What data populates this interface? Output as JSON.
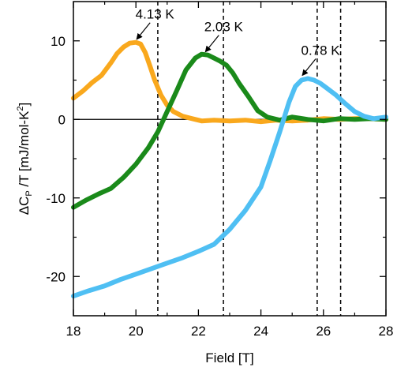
{
  "chart_data": {
    "type": "line",
    "title": "",
    "xlabel": "Field [T]",
    "ylabel": {
      "prefix": "ΔC",
      "sub": "P",
      "middle": " /T  [mJ/mol-K",
      "sup": "2",
      "suffix": "]"
    },
    "xlim": [
      18,
      28
    ],
    "ylim": [
      -25,
      15
    ],
    "x_ticks": [
      18,
      20,
      22,
      24,
      26,
      28
    ],
    "y_ticks": [
      -20,
      -10,
      0,
      10
    ],
    "x_minor_ticks": [
      19,
      21,
      23,
      25,
      27
    ],
    "y_minor_ticks": [
      -15,
      -5,
      5
    ],
    "zero_line": true,
    "grid": false,
    "legend": "none",
    "series": [
      {
        "color": "#F9A81D",
        "x": [
          18.0,
          18.3,
          18.6,
          18.9,
          19.2,
          19.4,
          19.6,
          19.8,
          20.0,
          20.15,
          20.3,
          20.45,
          20.6,
          20.8,
          21.0,
          21.2,
          21.5,
          21.8,
          22.1,
          22.5,
          23.0,
          23.5,
          24.0,
          24.5,
          25.0,
          25.5,
          26.0,
          26.5,
          27.0,
          27.5,
          28.0
        ],
        "values": [
          2.7,
          3.6,
          4.7,
          5.6,
          7.2,
          8.4,
          9.2,
          9.7,
          9.8,
          9.6,
          8.5,
          6.8,
          5.0,
          3.1,
          1.8,
          1.0,
          0.4,
          0.1,
          -0.2,
          -0.1,
          -0.2,
          -0.1,
          -0.3,
          -0.1,
          -0.2,
          -0.1,
          0.1,
          0.0,
          0.1,
          0.1,
          0.0
        ]
      },
      {
        "color": "#1A8A1A",
        "x": [
          18.0,
          18.4,
          18.8,
          19.2,
          19.6,
          20.0,
          20.4,
          20.7,
          21.0,
          21.3,
          21.6,
          21.9,
          22.1,
          22.3,
          22.5,
          22.7,
          22.9,
          23.1,
          23.3,
          23.6,
          23.9,
          24.2,
          24.6,
          25.0,
          25.5,
          26.0,
          26.5,
          27.0,
          27.5,
          28.0
        ],
        "values": [
          -11.2,
          -10.3,
          -9.5,
          -8.8,
          -7.4,
          -5.7,
          -3.6,
          -1.6,
          1.0,
          3.6,
          6.3,
          7.8,
          8.3,
          8.2,
          7.8,
          7.4,
          6.9,
          5.9,
          4.6,
          2.9,
          1.1,
          0.3,
          -0.1,
          0.3,
          0.0,
          -0.2,
          0.1,
          0.0,
          0.1,
          0.0
        ]
      },
      {
        "color": "#4FBFF3",
        "x": [
          18.0,
          18.5,
          19.0,
          19.5,
          20.0,
          20.5,
          21.0,
          21.5,
          22.0,
          22.5,
          23.0,
          23.5,
          24.0,
          24.3,
          24.6,
          24.9,
          25.1,
          25.3,
          25.5,
          25.7,
          25.9,
          26.1,
          26.4,
          26.7,
          27.0,
          27.3,
          27.6,
          28.0
        ],
        "values": [
          -22.5,
          -21.8,
          -21.2,
          -20.4,
          -19.7,
          -19.0,
          -18.3,
          -17.6,
          -16.8,
          -15.9,
          -14.0,
          -11.6,
          -8.6,
          -5.2,
          -1.6,
          2.2,
          4.2,
          5.0,
          5.2,
          5.0,
          4.6,
          4.0,
          3.1,
          2.0,
          1.0,
          0.4,
          0.1,
          0.3
        ]
      }
    ],
    "vertical_markers": [
      20.7,
      22.8,
      25.8,
      26.55
    ],
    "annotations": [
      {
        "text": "4.13 K",
        "x": 20.0,
        "y": 9.8
      },
      {
        "text": "2.03 K",
        "x": 22.2,
        "y": 8.2
      },
      {
        "text": "0.78 K",
        "x": 25.3,
        "y": 5.2
      }
    ]
  }
}
